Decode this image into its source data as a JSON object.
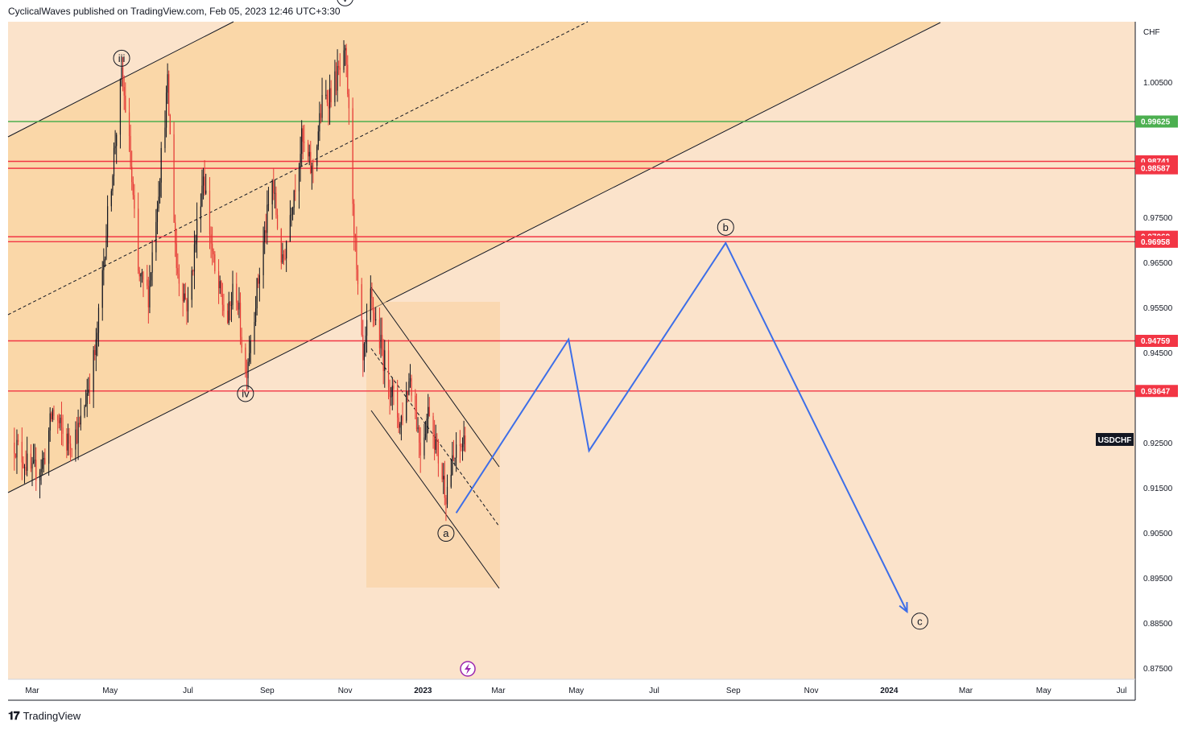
{
  "header": {
    "text": "CyclicalWaves published on TradingView.com, Feb 05, 2023 12:46 UTC+3:30"
  },
  "footer": {
    "logo": "𝟏𝟕",
    "brand": "TradingView"
  },
  "colors": {
    "background": "#fbe3cb",
    "channel_fill": "#fad7a8",
    "up": "#131722",
    "down": "#e53935",
    "projection": "#3d6ee8",
    "resistance": "#f23645",
    "support_green": "#4caf50"
  },
  "chart_data": {
    "type": "candlestick",
    "symbol": "USDCHF",
    "currency": "CHF",
    "y_ticks": [
      1.005,
      0.975,
      0.965,
      0.955,
      0.945,
      0.925,
      0.915,
      0.905,
      0.895,
      0.885,
      0.875
    ],
    "y_tick_labels": [
      "1.00500",
      "0.97500",
      "0.96500",
      "0.95500",
      "0.94500",
      "0.92500",
      "0.91500",
      "0.90500",
      "0.89500",
      "0.88500",
      "0.87500"
    ],
    "x_ticks": [
      "Mar",
      "May",
      "Jul",
      "Sep",
      "Nov",
      "2023",
      "Mar",
      "May",
      "Jul",
      "Sep",
      "Nov",
      "2024",
      "Mar",
      "May",
      "Jul"
    ],
    "x_tick_months": [
      "2022-03",
      "2022-05",
      "2022-07",
      "2022-09",
      "2022-11",
      "2023-01",
      "2023-03",
      "2023-05",
      "2023-07",
      "2023-09",
      "2023-11",
      "2024-01",
      "2024-03",
      "2024-05",
      "2024-07"
    ],
    "horizontal_levels": [
      {
        "value": 0.99625,
        "label": "0.99625",
        "color": "#4caf50"
      },
      {
        "value": 0.98741,
        "label": "0.98741",
        "color": "#f23645"
      },
      {
        "value": 0.98587,
        "label": "0.98587",
        "color": "#f23645"
      },
      {
        "value": 0.97069,
        "label": "0.97069",
        "color": "#f23645"
      },
      {
        "value": 0.96958,
        "label": "0.96958",
        "color": "#f23645"
      },
      {
        "value": 0.94759,
        "label": "0.94759",
        "color": "#f23645"
      },
      {
        "value": 0.93647,
        "label": "0.93647",
        "color": "#f23645"
      }
    ],
    "wave_labels": [
      {
        "text": "iii",
        "date": "2022-05-10",
        "price": 1.0103
      },
      {
        "text": "v",
        "date": "2022-11-01",
        "price": 1.0237
      },
      {
        "text": "iv",
        "date": "2022-08-15",
        "price": 0.9359
      },
      {
        "text": "a",
        "date": "2023-01-19",
        "price": 0.9049
      },
      {
        "text": "b",
        "date": "2023-08-26",
        "price": 0.9728
      },
      {
        "text": "c",
        "date": "2024-01-25",
        "price": 0.8854
      }
    ],
    "projection_path": [
      {
        "date": "2023-01-27",
        "price": 0.9094
      },
      {
        "date": "2023-04-25",
        "price": 0.9479
      },
      {
        "date": "2023-05-11",
        "price": 0.9232
      },
      {
        "date": "2023-08-26",
        "price": 0.9693
      },
      {
        "date": "2024-01-15",
        "price": 0.8875
      }
    ],
    "candles_summary": "USDCHF daily candles, Feb 2022 – Feb 2023"
  }
}
